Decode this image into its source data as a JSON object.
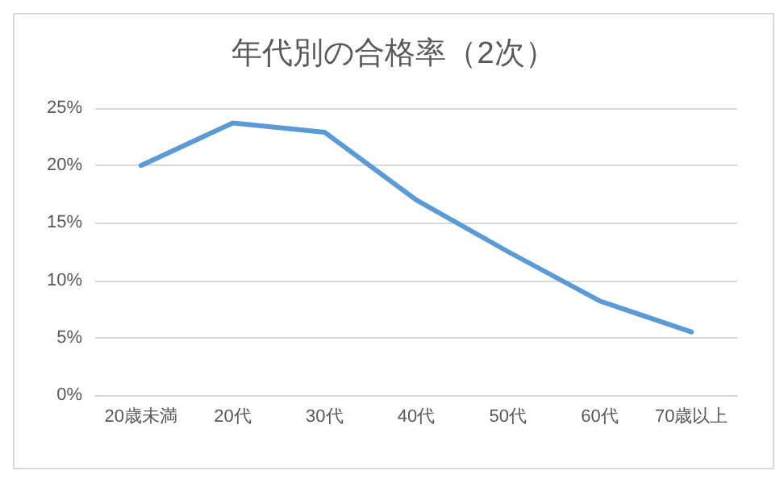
{
  "chart_data": {
    "type": "line",
    "title": "年代別の合格率（2次）",
    "categories": [
      "20歳未満",
      "20代",
      "30代",
      "40代",
      "50代",
      "60代",
      "70歳以上"
    ],
    "series": [
      {
        "color": "#5b9bd5",
        "values": [
          20,
          23.7,
          22.9,
          17,
          12.5,
          8.2,
          5.5
        ]
      }
    ],
    "ylim": [
      0,
      25
    ],
    "yticks": [
      {
        "value": 0,
        "label": "0%"
      },
      {
        "value": 5,
        "label": "5%"
      },
      {
        "value": 10,
        "label": "10%"
      },
      {
        "value": 15,
        "label": "15%"
      },
      {
        "value": 20,
        "label": "20%"
      },
      {
        "value": 25,
        "label": "25%"
      }
    ],
    "grid": "y",
    "marker": "none",
    "line_style": "solid"
  }
}
